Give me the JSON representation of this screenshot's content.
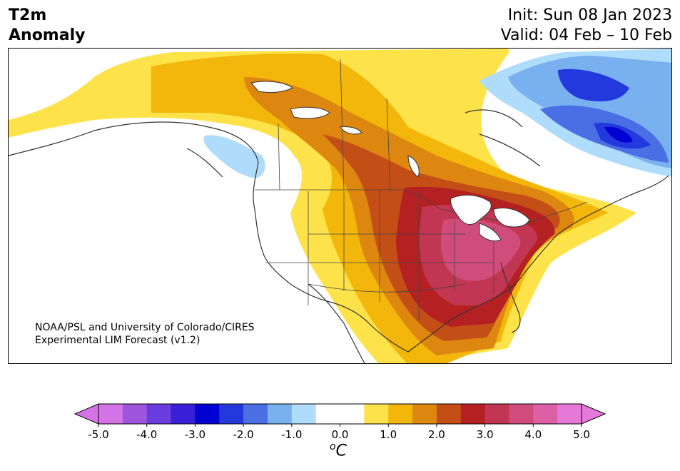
{
  "header": {
    "title_line1": "T2m",
    "title_line2": "Anomaly",
    "init": "Init: Sun 08 Jan 2023",
    "valid": "Valid: 04 Feb – 10 Feb"
  },
  "credit": {
    "line1": "NOAA/PSL and University of Colorado/CIRES",
    "line2": "Experimental LIM Forecast (v1.2)"
  },
  "colorbar": {
    "colors": [
      "#d473e6",
      "#9e55de",
      "#6a3bde",
      "#3a1fd6",
      "#0000d2",
      "#2439dd",
      "#4a6ee4",
      "#78b0f0",
      "#aedcfa",
      "#ffffff",
      "#ffffff",
      "#fde24a",
      "#f2b70a",
      "#dd8710",
      "#c44f16",
      "#b52022",
      "#c13652",
      "#d04c7b",
      "#dd60a4",
      "#e678d8"
    ],
    "ticks": [
      "-5.0",
      "-4.0",
      "-3.0",
      "-2.0",
      "-1.0",
      "0.0",
      "1.0",
      "2.0",
      "3.0",
      "4.0",
      "5.0"
    ],
    "unit_base": "C",
    "unit_sup": "o"
  },
  "map_colors": {
    "warm1": "#fde24a",
    "warm2": "#f2b70a",
    "warm3": "#dd8710",
    "warm4": "#c44f16",
    "warm5": "#b52022",
    "warm6": "#c13652",
    "warm7": "#d04c7b",
    "cool1": "#aedcfa",
    "cool2": "#78b0f0",
    "cool3": "#4a6ee4",
    "cool4": "#2439dd",
    "cool5": "#0000d2"
  }
}
